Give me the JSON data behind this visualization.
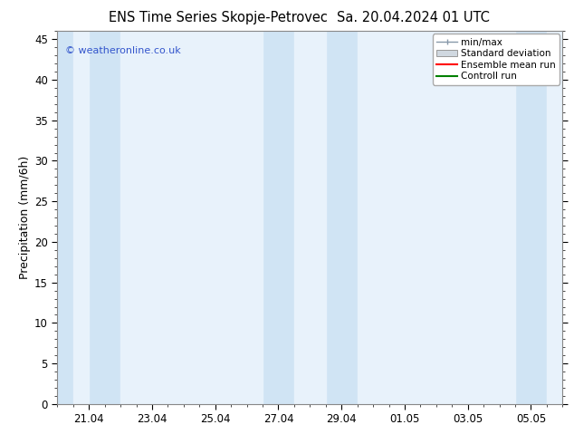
{
  "title_left": "ENS Time Series Skopje-Petrovec",
  "title_right": "Sa. 20.04.2024 01 UTC",
  "ylabel": "Precipitation (mm/6h)",
  "ylim": [
    0,
    46
  ],
  "yticks": [
    0,
    5,
    10,
    15,
    20,
    25,
    30,
    35,
    40,
    45
  ],
  "xtick_labels": [
    "21.04",
    "23.04",
    "25.04",
    "27.04",
    "29.04",
    "01.05",
    "03.05",
    "05.05"
  ],
  "xtick_positions": [
    1,
    3,
    5,
    7,
    9,
    11,
    13,
    15
  ],
  "xlim": [
    0,
    16
  ],
  "watermark": "© weatheronline.co.uk",
  "background_color": "#ffffff",
  "plot_bg_color": "#ffffff",
  "band_color_dark": "#d0e4f4",
  "band_color_light": "#e8f2fb",
  "shaded_bands_dark": [
    [
      0.0,
      0.5
    ],
    [
      1.0,
      2.0
    ],
    [
      6.5,
      7.5
    ],
    [
      8.5,
      9.5
    ],
    [
      14.5,
      15.5
    ]
  ],
  "shaded_bands_light": [
    [
      0.5,
      1.0
    ],
    [
      2.0,
      6.5
    ],
    [
      7.5,
      8.5
    ],
    [
      9.5,
      14.5
    ],
    [
      15.5,
      16.0
    ]
  ],
  "legend_items": [
    {
      "label": "min/max",
      "color": "#a0b8cc",
      "type": "errorbar"
    },
    {
      "label": "Standard deviation",
      "color": "#c0ccd8",
      "type": "box"
    },
    {
      "label": "Ensemble mean run",
      "color": "#ff0000",
      "type": "line"
    },
    {
      "label": "Controll run",
      "color": "#008000",
      "type": "line"
    }
  ],
  "title_fontsize": 10.5,
  "tick_fontsize": 8.5,
  "ylabel_fontsize": 9,
  "watermark_color": "#3355cc",
  "border_color": "#888888"
}
